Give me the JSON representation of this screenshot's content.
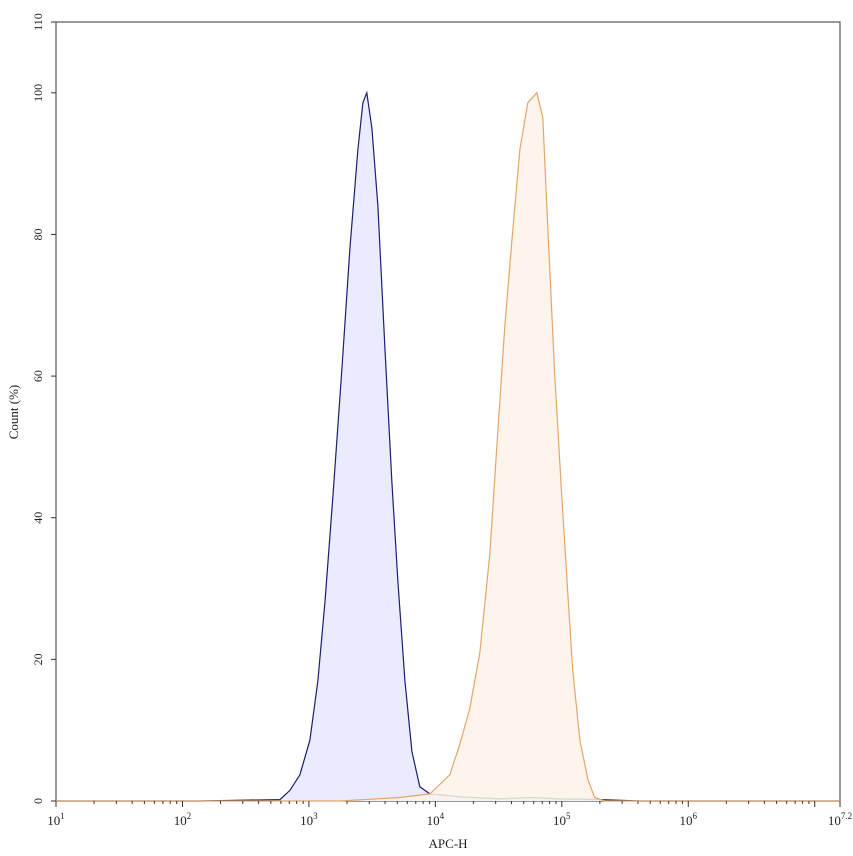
{
  "chart_data": {
    "type": "area",
    "title": "",
    "xlabel": "APC-H",
    "ylabel": "Count (%)",
    "x_scale": "log",
    "xlim": [
      10,
      15848931.9
    ],
    "ylim": [
      0,
      110
    ],
    "x_tick_labels": [
      {
        "base": "10",
        "exp": "1",
        "value": 10
      },
      {
        "base": "10",
        "exp": "2",
        "value": 100
      },
      {
        "base": "10",
        "exp": "3",
        "value": 1000
      },
      {
        "base": "10",
        "exp": "4",
        "value": 10000
      },
      {
        "base": "10",
        "exp": "5",
        "value": 100000
      },
      {
        "base": "10",
        "exp": "6",
        "value": 1000000
      },
      {
        "base": "10",
        "exp": "7.2",
        "value": 15848931.9
      }
    ],
    "y_ticks": [
      "0",
      "20",
      "40",
      "60",
      "80",
      "100",
      "110"
    ],
    "grid": false,
    "legend": "none",
    "series": [
      {
        "color": "#1c1c70",
        "fill": "#e6e8fb",
        "x": [
          10,
          137,
          590,
          708,
          849,
          1019,
          1178,
          1337,
          1549,
          1824,
          2110,
          2439,
          2673,
          2872,
          3148,
          3510,
          3990,
          4530,
          5055,
          5744,
          6520,
          7540,
          9050,
          15600,
          32400,
          55900,
          96400,
          200000,
          414000,
          15848931.9
        ],
        "y": [
          0,
          0,
          0.2,
          1.5,
          3.7,
          8.6,
          17,
          28,
          43,
          61,
          78,
          92,
          98.6,
          100,
          95,
          84,
          64,
          45,
          31,
          17,
          7,
          2,
          1,
          0.6,
          0.3,
          0.5,
          0.3,
          0.2,
          0,
          0
        ]
      },
      {
        "color": "#e3a66a",
        "fill": "#fdf3e8",
        "x": [
          10,
          1760,
          5240,
          9050,
          13000,
          15600,
          18700,
          22500,
          27000,
          30600,
          35400,
          40200,
          46600,
          53800,
          63400,
          70800,
          77500,
          88100,
          100000,
          111000,
          122000,
          139000,
          161000,
          182000,
          219000,
          15848931.9
        ],
        "y": [
          0,
          0,
          0.5,
          1,
          3.7,
          8,
          13,
          21,
          35,
          50,
          67,
          79,
          92,
          98.6,
          100,
          96.5,
          81,
          60,
          43,
          30,
          18.5,
          8.6,
          3,
          0.5,
          0,
          0
        ]
      }
    ]
  }
}
